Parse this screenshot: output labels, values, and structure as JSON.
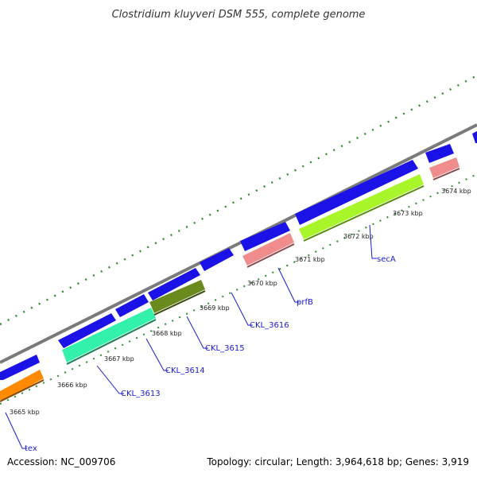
{
  "title": "Clostridium kluyveri DSM 555, complete genome",
  "footer": {
    "accession": "Accession: NC_009706",
    "summary": "Topology: circular; Length: 3,964,618 bp; Genes: 3,919"
  },
  "colors": {
    "backbone": "#7a7a7a",
    "tick": "#2a8c2a",
    "forward_gene": "#1a12e6",
    "gene_label": "#1a1acc"
  },
  "kbp_labels": [
    "3665 kbp",
    "3666 kbp",
    "3667 kbp",
    "3668 kbp",
    "3669 kbp",
    "3670 kbp",
    "3671 kbp",
    "3672 kbp",
    "3673 kbp",
    "3674 kbp"
  ],
  "genes": [
    {
      "name": "tex",
      "color": "#ff8a00"
    },
    {
      "name": "CKL_3613",
      "color": "#33f0aa"
    },
    {
      "name": "CKL_3614",
      "color": "#2a5ff0"
    },
    {
      "name": "CKL_3615",
      "color": "#6b8a1e"
    },
    {
      "name": "CKL_3616",
      "color": "#1a12e6"
    },
    {
      "name": "prfB",
      "color": "#f08c8c"
    },
    {
      "name": "secA",
      "color": "#a8f52a"
    }
  ]
}
